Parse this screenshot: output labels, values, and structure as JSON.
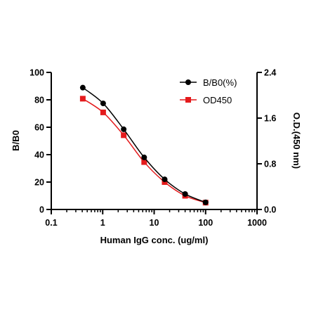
{
  "chart_data": {
    "type": "line",
    "xlabel": "Human IgG conc. (ug/ml)",
    "ylabel": "B/B0",
    "y2label": "O.D.(450 nm)",
    "x_scale": "log",
    "xlim": [
      0.1,
      1000
    ],
    "ylim": [
      0,
      100
    ],
    "y2lim": [
      0,
      2.4
    ],
    "x_ticks": [
      "0.1",
      "1",
      "10",
      "100",
      "1000"
    ],
    "y_ticks": [
      "0",
      "20",
      "40",
      "60",
      "80",
      "100"
    ],
    "y2_ticks": [
      "0.0",
      "0.8",
      "1.6",
      "2.4"
    ],
    "grid": false,
    "legend_position": "top-right",
    "series": [
      {
        "name": "B/B0(%)",
        "axis": "left",
        "color": "#000000",
        "marker": "circle",
        "x": [
          0.41,
          1.02,
          2.56,
          6.4,
          16,
          40,
          100
        ],
        "values": [
          88.9,
          77.4,
          58.5,
          38.0,
          22.0,
          11.3,
          5.2
        ]
      },
      {
        "name": "OD450",
        "axis": "right",
        "color": "#e41a1c",
        "marker": "square",
        "x": [
          0.41,
          1.02,
          2.56,
          6.4,
          16,
          40,
          100
        ],
        "values": [
          1.94,
          1.7,
          1.3,
          0.83,
          0.48,
          0.24,
          0.12
        ]
      }
    ]
  }
}
